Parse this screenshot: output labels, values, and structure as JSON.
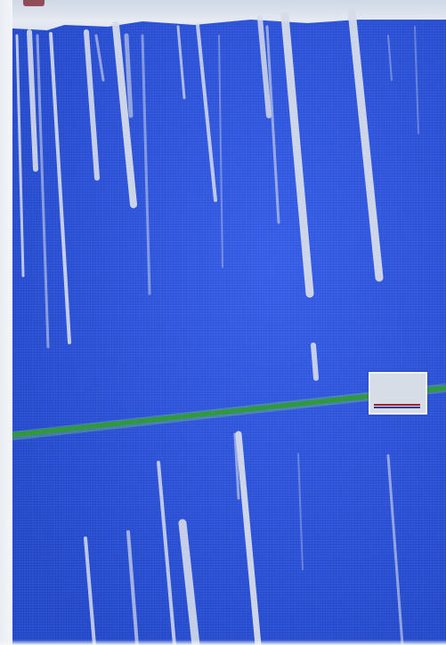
{
  "screen": {
    "background_color": "#2a55ea",
    "margin_color": "#f4f6f8",
    "stripe_color": "#d6dcea",
    "progress_line_color": "#2e9a3a",
    "marker_colors": [
      "#a51f2b",
      "#2b3f9a"
    ]
  }
}
